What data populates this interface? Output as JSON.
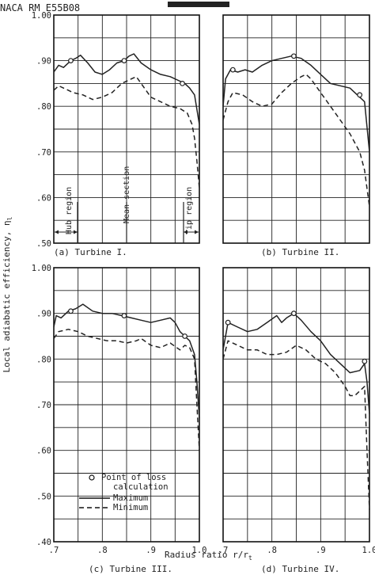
{
  "report_id": "NACA RM E55B08",
  "ylabel": "Local adiabatic efficiency, η",
  "ylabel_sub": "l",
  "xlabel": "Radius ratio  r/r",
  "xlabel_sub": "t",
  "colors": {
    "ink": "#222222",
    "paper": "#ffffff"
  },
  "legend": {
    "marker_label_line1": "Point of loss",
    "marker_label_line2": "calculation",
    "maximum": "Maximum",
    "minimum": "Minimum"
  },
  "region_labels": {
    "hub": "Hub region",
    "mean": "Mean section",
    "tip": "Tip region"
  },
  "chart_data": [
    {
      "type": "line",
      "panel": "a",
      "caption": "(a) Turbine I.",
      "xlim": [
        0.7,
        1.0
      ],
      "ylim": [
        0.5,
        1.0
      ],
      "y_ticks": [
        ".50",
        ".60",
        ".70",
        ".80",
        ".90",
        "1.00"
      ],
      "series": [
        {
          "name": "Maximum",
          "style": "solid",
          "x": [
            0.7,
            0.71,
            0.72,
            0.735,
            0.745,
            0.755,
            0.77,
            0.785,
            0.8,
            0.815,
            0.83,
            0.845,
            0.855,
            0.865,
            0.88,
            0.9,
            0.92,
            0.94,
            0.96,
            0.97,
            0.98,
            0.99,
            1.0
          ],
          "y": [
            0.875,
            0.89,
            0.885,
            0.9,
            0.905,
            0.912,
            0.895,
            0.875,
            0.87,
            0.88,
            0.895,
            0.9,
            0.91,
            0.915,
            0.895,
            0.88,
            0.87,
            0.865,
            0.855,
            0.85,
            0.84,
            0.825,
            0.76
          ]
        },
        {
          "name": "Minimum",
          "style": "dashed",
          "x": [
            0.7,
            0.71,
            0.72,
            0.74,
            0.76,
            0.78,
            0.8,
            0.82,
            0.84,
            0.86,
            0.87,
            0.88,
            0.89,
            0.9,
            0.92,
            0.94,
            0.96,
            0.975,
            0.985,
            0.99,
            0.995,
            1.0
          ],
          "y": [
            0.835,
            0.845,
            0.84,
            0.83,
            0.825,
            0.815,
            0.82,
            0.83,
            0.85,
            0.86,
            0.865,
            0.85,
            0.835,
            0.82,
            0.81,
            0.8,
            0.795,
            0.785,
            0.76,
            0.73,
            0.68,
            0.62
          ]
        }
      ],
      "loss_points": {
        "x": [
          0.735,
          0.845,
          0.965
        ],
        "y": [
          0.9,
          0.9,
          0.85
        ]
      }
    },
    {
      "type": "line",
      "panel": "b",
      "caption": "(b) Turbine II.",
      "xlim": [
        0.7,
        1.0
      ],
      "ylim": [
        0.5,
        1.0
      ],
      "series": [
        {
          "name": "Maximum",
          "style": "solid",
          "x": [
            0.7,
            0.705,
            0.715,
            0.73,
            0.745,
            0.76,
            0.78,
            0.8,
            0.82,
            0.84,
            0.86,
            0.88,
            0.9,
            0.92,
            0.94,
            0.96,
            0.975,
            0.99,
            1.0
          ],
          "y": [
            0.8,
            0.86,
            0.88,
            0.875,
            0.88,
            0.875,
            0.89,
            0.9,
            0.905,
            0.91,
            0.905,
            0.89,
            0.87,
            0.85,
            0.845,
            0.84,
            0.825,
            0.81,
            0.7
          ]
        },
        {
          "name": "Minimum",
          "style": "dashed",
          "x": [
            0.7,
            0.71,
            0.72,
            0.74,
            0.76,
            0.78,
            0.8,
            0.82,
            0.84,
            0.86,
            0.87,
            0.88,
            0.9,
            0.92,
            0.94,
            0.96,
            0.98,
            0.99,
            0.995,
            1.0
          ],
          "y": [
            0.77,
            0.81,
            0.83,
            0.825,
            0.81,
            0.8,
            0.805,
            0.83,
            0.85,
            0.865,
            0.87,
            0.86,
            0.83,
            0.8,
            0.77,
            0.74,
            0.7,
            0.66,
            0.62,
            0.58
          ]
        }
      ],
      "loss_points": {
        "x": [
          0.72,
          0.845,
          0.98
        ],
        "y": [
          0.88,
          0.91,
          0.825
        ]
      }
    },
    {
      "type": "line",
      "panel": "c",
      "caption": "(c) Turbine III.",
      "xlim": [
        0.7,
        1.0
      ],
      "ylim": [
        0.4,
        1.0
      ],
      "y_ticks": [
        ".40",
        ".50",
        ".60",
        ".70",
        ".80",
        ".90",
        "1.00"
      ],
      "x_ticks": [
        ".7",
        ".8",
        ".9",
        "1.0"
      ],
      "series": [
        {
          "name": "Maximum",
          "style": "solid",
          "x": [
            0.7,
            0.705,
            0.715,
            0.73,
            0.745,
            0.76,
            0.78,
            0.8,
            0.82,
            0.84,
            0.86,
            0.88,
            0.9,
            0.92,
            0.94,
            0.95,
            0.96,
            0.97,
            0.98,
            0.99,
            0.995,
            1.0
          ],
          "y": [
            0.87,
            0.895,
            0.89,
            0.905,
            0.91,
            0.92,
            0.905,
            0.9,
            0.9,
            0.895,
            0.89,
            0.885,
            0.88,
            0.885,
            0.89,
            0.88,
            0.86,
            0.85,
            0.84,
            0.81,
            0.75,
            0.67
          ]
        },
        {
          "name": "Minimum",
          "style": "dashed",
          "x": [
            0.7,
            0.71,
            0.73,
            0.75,
            0.77,
            0.79,
            0.81,
            0.83,
            0.85,
            0.87,
            0.88,
            0.9,
            0.92,
            0.94,
            0.96,
            0.97,
            0.98,
            0.99,
            0.995,
            1.0
          ],
          "y": [
            0.845,
            0.86,
            0.865,
            0.86,
            0.85,
            0.845,
            0.84,
            0.84,
            0.835,
            0.84,
            0.845,
            0.83,
            0.825,
            0.835,
            0.82,
            0.83,
            0.825,
            0.8,
            0.7,
            0.6
          ]
        }
      ],
      "loss_points": {
        "x": [
          0.735,
          0.845,
          0.97
        ],
        "y": [
          0.905,
          0.895,
          0.85
        ]
      }
    },
    {
      "type": "line",
      "panel": "d",
      "caption": "(d) Turbine IV.",
      "xlim": [
        0.7,
        1.0
      ],
      "ylim": [
        0.4,
        1.0
      ],
      "x_ticks": [
        ".7",
        ".8",
        ".9",
        "1.0"
      ],
      "series": [
        {
          "name": "Maximum",
          "style": "solid",
          "x": [
            0.7,
            0.71,
            0.73,
            0.75,
            0.77,
            0.79,
            0.81,
            0.82,
            0.83,
            0.845,
            0.86,
            0.88,
            0.9,
            0.92,
            0.94,
            0.96,
            0.98,
            0.99,
            0.995,
            1.0
          ],
          "y": [
            0.82,
            0.88,
            0.87,
            0.86,
            0.865,
            0.88,
            0.895,
            0.88,
            0.89,
            0.9,
            0.885,
            0.86,
            0.84,
            0.81,
            0.79,
            0.77,
            0.775,
            0.79,
            0.75,
            0.68
          ]
        },
        {
          "name": "Minimum",
          "style": "dashed",
          "x": [
            0.7,
            0.71,
            0.73,
            0.75,
            0.77,
            0.79,
            0.81,
            0.83,
            0.85,
            0.87,
            0.89,
            0.91,
            0.93,
            0.95,
            0.96,
            0.97,
            0.98,
            0.99,
            0.995,
            1.0
          ],
          "y": [
            0.8,
            0.84,
            0.83,
            0.82,
            0.82,
            0.81,
            0.81,
            0.815,
            0.83,
            0.82,
            0.8,
            0.79,
            0.77,
            0.74,
            0.72,
            0.72,
            0.73,
            0.74,
            0.6,
            0.47
          ]
        }
      ],
      "loss_points": {
        "x": [
          0.71,
          0.845,
          0.99
        ],
        "y": [
          0.88,
          0.9,
          0.795
        ]
      }
    }
  ]
}
